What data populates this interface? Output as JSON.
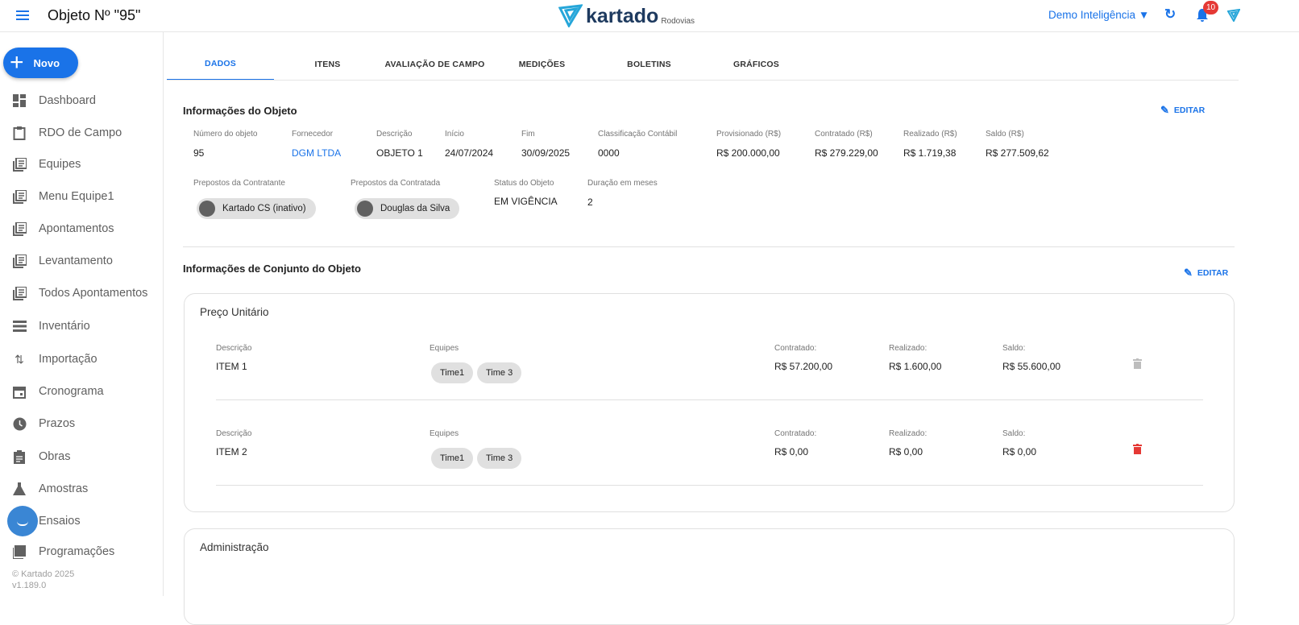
{
  "header": {
    "title": "Objeto Nº \"95\"",
    "logo_text": "kartado",
    "logo_sub": "Rodovias",
    "company": "Demo Inteligência",
    "notifications": "10",
    "menu_icon": "hamburger-icon"
  },
  "sidebar": {
    "new_label": "Novo",
    "items": [
      {
        "label": "Dashboard",
        "icon": "dashboard-icon"
      },
      {
        "label": "RDO de Campo",
        "icon": "clipboard-icon"
      },
      {
        "label": "Equipes",
        "icon": "list-icon"
      },
      {
        "label": "Menu Equipe1",
        "icon": "list-icon"
      },
      {
        "label": "Apontamentos",
        "icon": "list-icon"
      },
      {
        "label": "Levantamento",
        "icon": "list-icon"
      },
      {
        "label": "Todos Apontamentos",
        "icon": "list-icon"
      },
      {
        "label": "Inventário",
        "icon": "inventory-icon"
      },
      {
        "label": "Importação",
        "icon": "import-export-icon"
      },
      {
        "label": "Cronograma",
        "icon": "calendar-icon"
      },
      {
        "label": "Prazos",
        "icon": "clock-icon"
      },
      {
        "label": "Obras",
        "icon": "assignment-icon"
      },
      {
        "label": "Amostras",
        "icon": "flask-icon"
      },
      {
        "label": "Ensaios",
        "icon": "chat-icon"
      },
      {
        "label": "Programações",
        "icon": "book-icon"
      }
    ],
    "footer_copyright": "© Kartado 2025",
    "version": "v1.189.0"
  },
  "tabs": [
    "DADOS",
    "ITENS",
    "AVALIAÇÃO DE CAMPO",
    "MEDIÇÕES",
    "BOLETINS",
    "GRÁFICOS"
  ],
  "info": {
    "title": "Informações do Objeto",
    "edit": "EDITAR",
    "fields": [
      {
        "label": "Número do objeto",
        "value": "95"
      },
      {
        "label": "Fornecedor",
        "value": "DGM LTDA"
      },
      {
        "label": "Descrição",
        "value": "OBJETO 1"
      },
      {
        "label": "Início",
        "value": "24/07/2024"
      },
      {
        "label": "Fim",
        "value": "30/09/2025"
      },
      {
        "label": "Classificação Contábil",
        "value": "0000"
      },
      {
        "label": "Provisionado (R$)",
        "value": "R$ 200.000,00"
      },
      {
        "label": "Contratado (R$)",
        "value": "R$ 279.229,00"
      },
      {
        "label": "Realizado (R$)",
        "value": "R$ 1.719,38"
      },
      {
        "label": "Saldo (R$)",
        "value": "R$ 277.509,62"
      }
    ],
    "contratante_label": "Prepostos da Contratante",
    "contratante": "Kartado CS (inativo)",
    "contratada_label": "Prepostos da Contratada",
    "contratada": "Douglas da Silva",
    "status_label": "Status do Objeto",
    "status": "EM VIGÊNCIA",
    "duracao_label": "Duração em meses",
    "duracao": "2"
  },
  "conjunto": {
    "title": "Informações de Conjunto do Objeto",
    "edit": "EDITAR",
    "card_title": "Preço Unitário",
    "labels": {
      "descricao": "Descrição",
      "equipes": "Equipes",
      "contratado": "Contratado:",
      "realizado": "Realizado:",
      "saldo": "Saldo:"
    },
    "items": [
      {
        "descricao": "ITEM 1",
        "equipes": [
          "Time1",
          "Time 3"
        ],
        "contratado": "R$ 57.200,00",
        "realizado": "R$ 1.600,00",
        "saldo": "R$ 55.600,00",
        "delete_color": "#bdbdbd"
      },
      {
        "descricao": "ITEM 2",
        "equipes": [
          "Time1",
          "Time 3"
        ],
        "contratado": "R$ 0,00",
        "realizado": "R$ 0,00",
        "saldo": "R$ 0,00",
        "delete_color": "#e53935"
      }
    ],
    "card2_title": "Administração"
  },
  "colors": {
    "accent": "#1a73e8",
    "delete": "#e53935"
  }
}
